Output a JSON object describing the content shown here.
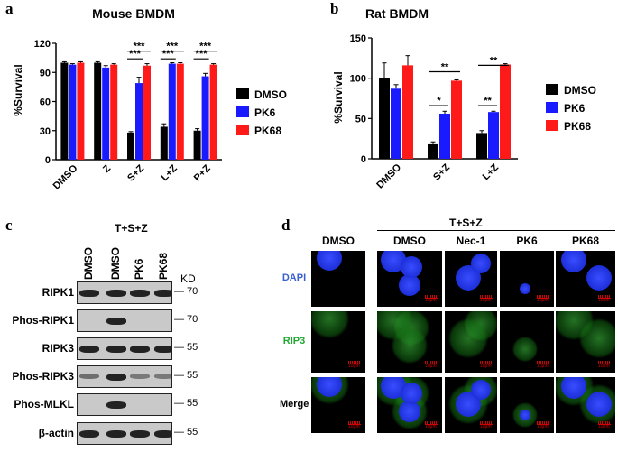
{
  "panels": {
    "a": {
      "letter": "a"
    },
    "b": {
      "letter": "b"
    },
    "c": {
      "letter": "c"
    },
    "d": {
      "letter": "d"
    }
  },
  "chart_data": [
    {
      "type": "bar",
      "title": "Mouse BMDM",
      "ylabel": "%Survival",
      "ylim": [
        0,
        120
      ],
      "yticks": [
        "0",
        "30",
        "60",
        "90",
        "120"
      ],
      "categories": [
        "DMSO",
        "Z",
        "S+Z",
        "L+Z",
        "P+Z"
      ],
      "series": [
        {
          "name": "DMSO",
          "color": "#000000",
          "values": [
            100,
            100,
            28,
            34,
            30
          ],
          "errors": [
            1,
            1,
            1,
            3,
            2
          ]
        },
        {
          "name": "PK6",
          "color": "#1a1aff",
          "values": [
            98,
            95,
            79,
            99,
            86
          ],
          "errors": [
            1,
            2,
            6,
            1,
            3
          ]
        },
        {
          "name": "PK68",
          "color": "#ff1a1a",
          "values": [
            100,
            98,
            97,
            99,
            98
          ],
          "errors": [
            1,
            1,
            2,
            1,
            1
          ]
        }
      ],
      "annotations": [
        "***",
        "***",
        "***",
        "***",
        "***",
        "***"
      ],
      "legend": "right"
    },
    {
      "type": "bar",
      "title": "Rat BMDM",
      "ylabel": "%Survival",
      "ylim": [
        0,
        150
      ],
      "yticks": [
        "0",
        "50",
        "100",
        "150"
      ],
      "categories": [
        "DMSO",
        "S+Z",
        "L+Z"
      ],
      "series": [
        {
          "name": "DMSO",
          "color": "#000000",
          "values": [
            100,
            18,
            32
          ],
          "errors": [
            19,
            3,
            3
          ]
        },
        {
          "name": "PK6",
          "color": "#1a1aff",
          "values": [
            87,
            56,
            58
          ],
          "errors": [
            5,
            3,
            1
          ]
        },
        {
          "name": "PK68",
          "color": "#ff1a1a",
          "values": [
            116,
            97,
            117
          ],
          "errors": [
            12,
            1,
            1
          ]
        }
      ],
      "annotations": [
        "*",
        "**",
        "**",
        "**"
      ],
      "legend": "right"
    }
  ],
  "western": {
    "treatment": "T+S+Z",
    "lanes": [
      "DMSO",
      "DMSO",
      "PK6",
      "PK68"
    ],
    "kd_label": "KD",
    "rows": [
      {
        "label": "RIPK1",
        "marker": "70",
        "bands": [
          1,
          1,
          1,
          1
        ]
      },
      {
        "label": "Phos-RIPK1",
        "marker": "70",
        "bands": [
          0,
          1,
          0,
          0
        ]
      },
      {
        "label": "RIPK3",
        "marker": "55",
        "bands": [
          1,
          1,
          1,
          1
        ]
      },
      {
        "label": "Phos-RIPK3",
        "marker": "55",
        "bands": [
          0.4,
          1,
          0.3,
          0.3
        ]
      },
      {
        "label": "Phos-MLKL",
        "marker": "55",
        "bands": [
          0,
          1,
          0,
          0
        ]
      },
      {
        "label": "β-actin",
        "marker": "55",
        "bands": [
          1,
          1,
          1,
          1
        ]
      }
    ]
  },
  "microscopy": {
    "treatment": "T+S+Z",
    "columns": [
      "DMSO",
      "DMSO",
      "Nec-1",
      "PK6",
      "PK68"
    ],
    "rows": [
      {
        "label": "DAPI",
        "color": "#3a5fd0"
      },
      {
        "label": "RIP3",
        "color": "#22a832"
      },
      {
        "label": "Merge",
        "color": "#000000"
      }
    ],
    "scale_bar": "10μm"
  }
}
